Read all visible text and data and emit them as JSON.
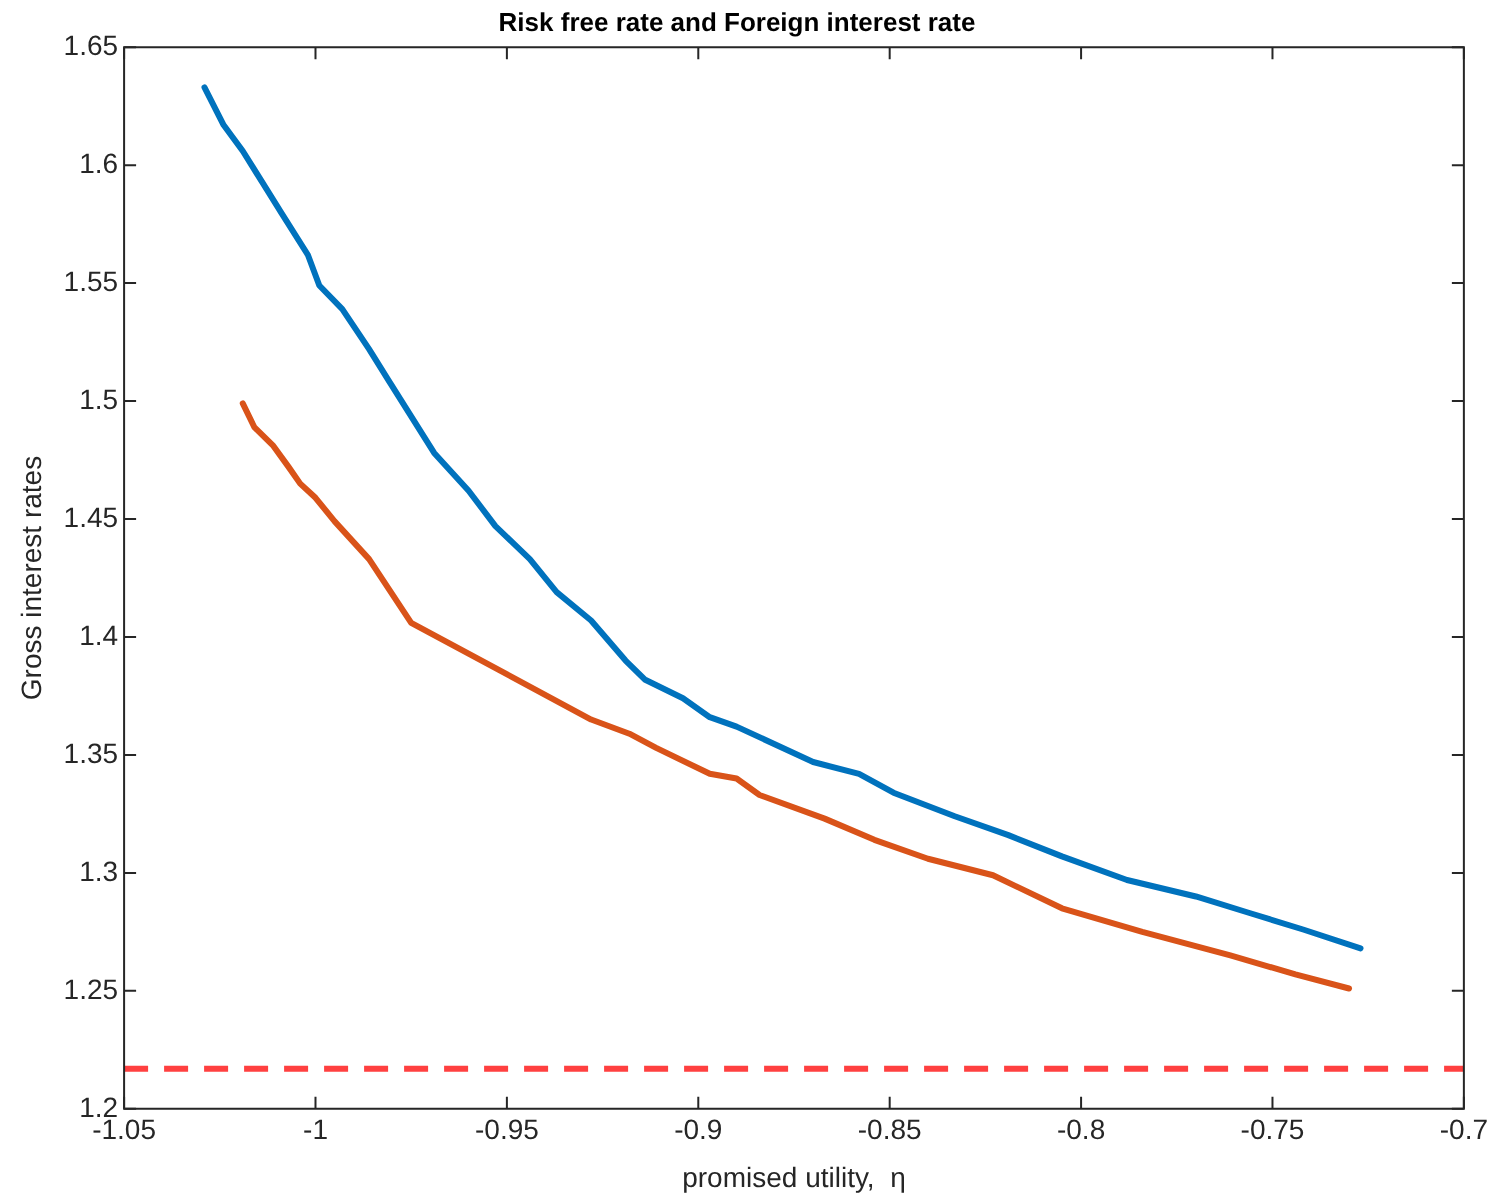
{
  "chart_data": {
    "type": "line",
    "title": "Risk free rate and Foreign interest rate",
    "xlabel": "promised utility,  η",
    "ylabel": "Gross interest rates",
    "xlim": [
      -1.05,
      -0.7
    ],
    "xticks": [
      -1.05,
      -1,
      -0.95,
      -0.9,
      -0.85,
      -0.8,
      -0.75,
      -0.7
    ],
    "ylim": [
      1.2,
      1.65
    ],
    "yticks": [
      1.2,
      1.25,
      1.3,
      1.35,
      1.4,
      1.45,
      1.5,
      1.55,
      1.6,
      1.65
    ],
    "grid": false,
    "legend": false,
    "marker": "none",
    "line_style": "solid",
    "ref_lines": [
      {
        "axis": "y",
        "value": 1.217,
        "color": "#ff4040",
        "line_style": "dashed"
      }
    ],
    "series": [
      {
        "color": "#0072bd",
        "x": [
          -1.029,
          -1.024,
          -1.019,
          -1.014,
          -1.009,
          -1.002,
          -0.999,
          -0.993,
          -0.986,
          -0.981,
          -0.969,
          -0.96,
          -0.953,
          -0.944,
          -0.937,
          -0.928,
          -0.919,
          -0.914,
          -0.904,
          -0.897,
          -0.89,
          -0.87,
          -0.858,
          -0.849,
          -0.833,
          -0.819,
          -0.805,
          -0.788,
          -0.77,
          -0.756,
          -0.742,
          -0.727
        ],
        "values": [
          1.633,
          1.617,
          1.606,
          1.593,
          1.58,
          1.562,
          1.549,
          1.539,
          1.522,
          1.509,
          1.478,
          1.462,
          1.447,
          1.433,
          1.419,
          1.407,
          1.39,
          1.382,
          1.374,
          1.366,
          1.362,
          1.347,
          1.342,
          1.334,
          1.324,
          1.316,
          1.307,
          1.297,
          1.29,
          1.283,
          1.276,
          1.268
        ]
      },
      {
        "color": "#d95319",
        "x": [
          -1.019,
          -1.016,
          -1.011,
          -1.007,
          -1.004,
          -1,
          -0.995,
          -0.986,
          -0.975,
          -0.928,
          -0.918,
          -0.911,
          -0.897,
          -0.89,
          -0.884,
          -0.867,
          -0.854,
          -0.84,
          -0.823,
          -0.805,
          -0.784,
          -0.761,
          -0.744,
          -0.73
        ],
        "values": [
          1.499,
          1.489,
          1.481,
          1.472,
          1.465,
          1.459,
          1.449,
          1.433,
          1.406,
          1.365,
          1.359,
          1.353,
          1.342,
          1.34,
          1.333,
          1.323,
          1.314,
          1.306,
          1.299,
          1.285,
          1.275,
          1.265,
          1.257,
          1.251
        ]
      }
    ]
  }
}
